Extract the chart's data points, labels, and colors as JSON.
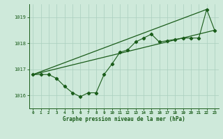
{
  "xlabel": "Graphe pression niveau de la mer (hPa)",
  "xlim": [
    -0.5,
    23.5
  ],
  "ylim": [
    1015.5,
    1019.5
  ],
  "yticks": [
    1016,
    1017,
    1018,
    1019
  ],
  "xticks": [
    0,
    1,
    2,
    3,
    4,
    5,
    6,
    7,
    8,
    9,
    10,
    11,
    12,
    13,
    14,
    15,
    16,
    17,
    18,
    19,
    20,
    21,
    22,
    23
  ],
  "background_color": "#cee9da",
  "line_color": "#1a5c1a",
  "grid_color": "#aacfbe",
  "series1": [
    [
      0,
      1016.8
    ],
    [
      1,
      1016.8
    ],
    [
      2,
      1016.8
    ],
    [
      3,
      1016.65
    ],
    [
      4,
      1016.35
    ],
    [
      5,
      1016.1
    ],
    [
      6,
      1015.95
    ],
    [
      7,
      1016.1
    ],
    [
      8,
      1016.1
    ],
    [
      9,
      1016.8
    ],
    [
      10,
      1017.2
    ],
    [
      11,
      1017.65
    ],
    [
      12,
      1017.75
    ],
    [
      13,
      1018.05
    ],
    [
      14,
      1018.2
    ],
    [
      15,
      1018.35
    ],
    [
      16,
      1018.05
    ],
    [
      17,
      1018.1
    ],
    [
      18,
      1018.15
    ],
    [
      19,
      1018.2
    ],
    [
      20,
      1018.2
    ],
    [
      21,
      1018.2
    ],
    [
      22,
      1019.3
    ],
    [
      23,
      1018.5
    ]
  ],
  "series2": [
    [
      0,
      1016.8
    ],
    [
      22,
      1019.3
    ]
  ],
  "series3": [
    [
      0,
      1016.8
    ],
    [
      23,
      1018.5
    ]
  ]
}
